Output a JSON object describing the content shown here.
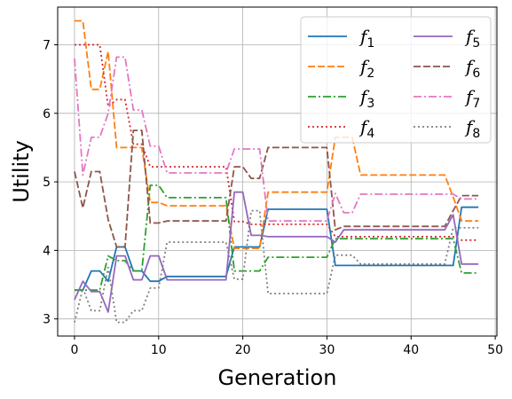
{
  "chart_data": {
    "type": "line",
    "title": "",
    "xlabel": "Generation",
    "ylabel": "Utility",
    "xlim": [
      -2,
      50.2
    ],
    "ylim": [
      2.75,
      7.55
    ],
    "xticks": [
      0,
      10,
      20,
      30,
      40,
      50
    ],
    "yticks": [
      3,
      4,
      5,
      6,
      7
    ],
    "grid": true,
    "legend_position": "top-right",
    "legend_columns": 2,
    "series": [
      {
        "name": "f",
        "sub": "1",
        "color": "#1f77b4",
        "dash": "solid",
        "x": [
          0,
          1,
          2,
          3,
          4,
          5,
          6,
          7,
          8,
          9,
          10,
          11,
          12,
          13,
          14,
          15,
          16,
          17,
          18,
          19,
          20,
          21,
          22,
          23,
          24,
          25,
          26,
          27,
          28,
          29,
          30,
          31,
          32,
          33,
          34,
          35,
          36,
          37,
          38,
          39,
          40,
          41,
          42,
          43,
          44,
          45,
          46,
          47,
          48
        ],
        "values": [
          3.42,
          3.42,
          3.7,
          3.7,
          3.55,
          4.05,
          4.05,
          3.7,
          3.7,
          3.55,
          3.55,
          3.62,
          3.62,
          3.62,
          3.62,
          3.62,
          3.62,
          3.62,
          3.62,
          4.05,
          4.05,
          4.05,
          4.05,
          4.6,
          4.6,
          4.6,
          4.6,
          4.6,
          4.6,
          4.6,
          4.6,
          3.78,
          3.78,
          3.78,
          3.78,
          3.78,
          3.78,
          3.78,
          3.78,
          3.78,
          3.78,
          3.78,
          3.78,
          3.78,
          3.78,
          3.78,
          4.63,
          4.63,
          4.63
        ]
      },
      {
        "name": "f",
        "sub": "2",
        "color": "#ff7f0e",
        "dash": "dashed",
        "x": [
          0,
          1,
          2,
          3,
          4,
          5,
          6,
          7,
          8,
          9,
          10,
          11,
          12,
          13,
          14,
          15,
          16,
          17,
          18,
          19,
          20,
          21,
          22,
          23,
          24,
          25,
          26,
          27,
          28,
          29,
          30,
          31,
          32,
          33,
          34,
          35,
          36,
          37,
          38,
          39,
          40,
          41,
          42,
          43,
          44,
          45,
          46,
          47,
          48
        ],
        "values": [
          7.35,
          7.35,
          6.35,
          6.35,
          6.9,
          5.5,
          5.5,
          5.5,
          5.5,
          4.7,
          4.7,
          4.65,
          4.65,
          4.65,
          4.65,
          4.65,
          4.65,
          4.65,
          4.65,
          4.03,
          4.03,
          4.03,
          4.03,
          4.85,
          4.85,
          4.85,
          4.85,
          4.85,
          4.85,
          4.85,
          4.85,
          5.65,
          5.65,
          5.65,
          5.1,
          5.1,
          5.1,
          5.1,
          5.1,
          5.1,
          5.1,
          5.1,
          5.1,
          5.1,
          5.1,
          4.78,
          4.43,
          4.43,
          4.43
        ]
      },
      {
        "name": "f",
        "sub": "3",
        "color": "#2ca02c",
        "dash": "dashdot",
        "x": [
          0,
          1,
          2,
          3,
          4,
          5,
          6,
          7,
          8,
          9,
          10,
          11,
          12,
          13,
          14,
          15,
          16,
          17,
          18,
          19,
          20,
          21,
          22,
          23,
          24,
          25,
          26,
          27,
          28,
          29,
          30,
          31,
          32,
          33,
          34,
          35,
          36,
          37,
          38,
          39,
          40,
          41,
          42,
          43,
          44,
          45,
          46,
          47,
          48
        ],
        "values": [
          3.42,
          3.42,
          3.42,
          3.42,
          3.92,
          3.85,
          3.85,
          3.7,
          3.7,
          4.95,
          4.95,
          4.77,
          4.77,
          4.77,
          4.77,
          4.77,
          4.77,
          4.77,
          4.77,
          3.7,
          3.7,
          3.7,
          3.7,
          3.9,
          3.9,
          3.9,
          3.9,
          3.9,
          3.9,
          3.9,
          3.9,
          4.17,
          4.17,
          4.17,
          4.17,
          4.17,
          4.17,
          4.17,
          4.17,
          4.17,
          4.17,
          4.17,
          4.17,
          4.17,
          4.17,
          4.17,
          3.67,
          3.67,
          3.67
        ]
      },
      {
        "name": "f",
        "sub": "4",
        "color": "#d62728",
        "dash": "dotted",
        "x": [
          0,
          1,
          2,
          3,
          4,
          5,
          6,
          7,
          8,
          9,
          10,
          11,
          12,
          13,
          14,
          15,
          16,
          17,
          18,
          19,
          20,
          21,
          22,
          23,
          24,
          25,
          26,
          27,
          28,
          29,
          30,
          31,
          32,
          33,
          34,
          35,
          36,
          37,
          38,
          39,
          40,
          41,
          42,
          43,
          44,
          45,
          46,
          47,
          48
        ],
        "values": [
          7.0,
          7.0,
          7.0,
          7.0,
          6.1,
          6.2,
          6.2,
          5.55,
          5.55,
          5.22,
          5.22,
          5.22,
          5.22,
          5.22,
          5.22,
          5.22,
          5.22,
          5.22,
          5.22,
          4.42,
          4.42,
          4.38,
          4.38,
          4.38,
          4.38,
          4.38,
          4.38,
          4.38,
          4.38,
          4.38,
          4.38,
          4.2,
          4.2,
          4.2,
          4.2,
          4.2,
          4.2,
          4.2,
          4.2,
          4.2,
          4.2,
          4.2,
          4.2,
          4.2,
          4.2,
          4.2,
          4.15,
          4.15,
          4.15
        ]
      },
      {
        "name": "f",
        "sub": "5",
        "color": "#9467bd",
        "dash": "solid",
        "x": [
          0,
          1,
          2,
          3,
          4,
          5,
          6,
          7,
          8,
          9,
          10,
          11,
          12,
          13,
          14,
          15,
          16,
          17,
          18,
          19,
          20,
          21,
          22,
          23,
          24,
          25,
          26,
          27,
          28,
          29,
          30,
          31,
          32,
          33,
          34,
          35,
          36,
          37,
          38,
          39,
          40,
          41,
          42,
          43,
          44,
          45,
          46,
          47,
          48
        ],
        "values": [
          3.28,
          3.55,
          3.4,
          3.4,
          3.1,
          3.92,
          3.92,
          3.57,
          3.57,
          3.92,
          3.92,
          3.57,
          3.57,
          3.57,
          3.57,
          3.57,
          3.57,
          3.57,
          3.57,
          4.85,
          4.85,
          4.22,
          4.22,
          4.2,
          4.2,
          4.2,
          4.2,
          4.2,
          4.2,
          4.2,
          4.2,
          4.12,
          4.3,
          4.3,
          4.3,
          4.3,
          4.3,
          4.3,
          4.3,
          4.3,
          4.3,
          4.3,
          4.3,
          4.3,
          4.3,
          4.52,
          3.8,
          3.8,
          3.8
        ]
      },
      {
        "name": "f",
        "sub": "6",
        "color": "#8c564b",
        "dash": "dashed",
        "x": [
          0,
          1,
          2,
          3,
          4,
          5,
          6,
          7,
          8,
          9,
          10,
          11,
          12,
          13,
          14,
          15,
          16,
          17,
          18,
          19,
          20,
          21,
          22,
          23,
          24,
          25,
          26,
          27,
          28,
          29,
          30,
          31,
          32,
          33,
          34,
          35,
          36,
          37,
          38,
          39,
          40,
          41,
          42,
          43,
          44,
          45,
          46,
          47,
          48
        ],
        "values": [
          5.15,
          4.62,
          5.15,
          5.15,
          4.45,
          4.05,
          4.05,
          5.75,
          5.75,
          4.4,
          4.4,
          4.43,
          4.43,
          4.43,
          4.43,
          4.43,
          4.43,
          4.43,
          4.43,
          5.22,
          5.22,
          5.05,
          5.05,
          5.5,
          5.5,
          5.5,
          5.5,
          5.5,
          5.5,
          5.5,
          5.5,
          4.3,
          4.35,
          4.35,
          4.35,
          4.35,
          4.35,
          4.35,
          4.35,
          4.35,
          4.35,
          4.35,
          4.35,
          4.35,
          4.35,
          4.58,
          4.8,
          4.8,
          4.8
        ]
      },
      {
        "name": "f",
        "sub": "7",
        "color": "#e377c2",
        "dash": "dashdot",
        "x": [
          0,
          1,
          2,
          3,
          4,
          5,
          6,
          7,
          8,
          9,
          10,
          11,
          12,
          13,
          14,
          15,
          16,
          17,
          18,
          19,
          20,
          21,
          22,
          23,
          24,
          25,
          26,
          27,
          28,
          29,
          30,
          31,
          32,
          33,
          34,
          35,
          36,
          37,
          38,
          39,
          40,
          41,
          42,
          43,
          44,
          45,
          46,
          47,
          48
        ],
        "values": [
          6.8,
          5.1,
          5.65,
          5.65,
          6.0,
          6.82,
          6.82,
          6.05,
          6.05,
          5.52,
          5.52,
          5.13,
          5.13,
          5.13,
          5.13,
          5.13,
          5.13,
          5.13,
          5.13,
          5.48,
          5.48,
          5.48,
          5.48,
          4.43,
          4.43,
          4.43,
          4.43,
          4.43,
          4.43,
          4.43,
          4.43,
          4.83,
          4.55,
          4.55,
          4.82,
          4.82,
          4.82,
          4.82,
          4.82,
          4.82,
          4.82,
          4.82,
          4.82,
          4.82,
          4.82,
          4.82,
          4.75,
          4.75,
          4.75
        ]
      },
      {
        "name": "f",
        "sub": "8",
        "color": "#7f7f7f",
        "dash": "dotted",
        "x": [
          0,
          1,
          2,
          3,
          4,
          5,
          6,
          7,
          8,
          9,
          10,
          11,
          12,
          13,
          14,
          15,
          16,
          17,
          18,
          19,
          20,
          21,
          22,
          23,
          24,
          25,
          26,
          27,
          28,
          29,
          30,
          31,
          32,
          33,
          34,
          35,
          36,
          37,
          38,
          39,
          40,
          41,
          42,
          43,
          44,
          45,
          46,
          47,
          48
        ],
        "values": [
          2.95,
          3.45,
          3.12,
          3.12,
          3.75,
          2.95,
          2.95,
          3.12,
          3.12,
          3.45,
          3.45,
          4.12,
          4.12,
          4.12,
          4.12,
          4.12,
          4.12,
          4.12,
          4.12,
          3.58,
          3.58,
          4.58,
          4.58,
          3.37,
          3.37,
          3.37,
          3.37,
          3.37,
          3.37,
          3.37,
          3.37,
          3.93,
          3.93,
          3.93,
          3.8,
          3.8,
          3.8,
          3.8,
          3.8,
          3.8,
          3.8,
          3.8,
          3.8,
          3.8,
          3.8,
          4.33,
          4.33,
          4.33,
          4.33
        ]
      }
    ]
  }
}
